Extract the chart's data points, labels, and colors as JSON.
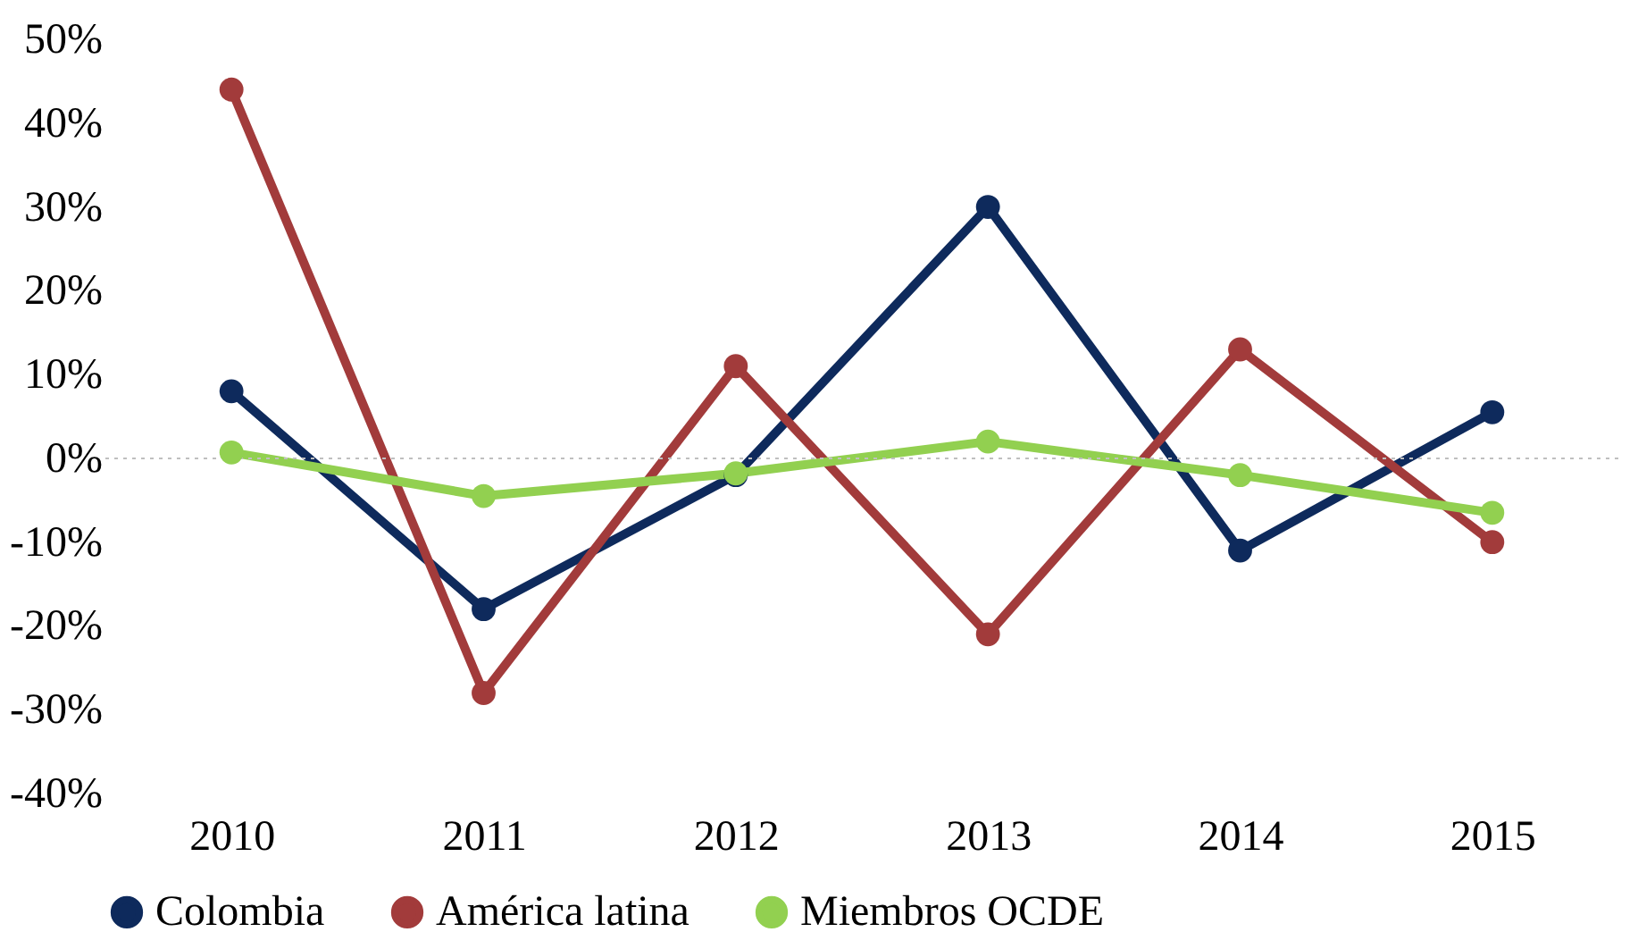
{
  "chart_data": {
    "type": "line",
    "categories": [
      "2010",
      "2011",
      "2012",
      "2013",
      "2014",
      "2015"
    ],
    "series": [
      {
        "name": "Colombia",
        "color": "#0e2a5c",
        "values": [
          8,
          -18,
          -2,
          30,
          -11,
          5.5
        ]
      },
      {
        "name": "América latina",
        "color": "#a23b3b",
        "values": [
          44,
          -28,
          11,
          -21,
          13,
          -10
        ]
      },
      {
        "name": "Miembros OCDE",
        "color": "#92d050",
        "values": [
          0.7,
          -4.5,
          -1.8,
          2,
          -2,
          -6.5
        ]
      }
    ],
    "ylim": [
      -40,
      50
    ],
    "yticks": [
      {
        "value": -40,
        "label": "-40%"
      },
      {
        "value": -30,
        "label": "-30%"
      },
      {
        "value": -20,
        "label": "-20%"
      },
      {
        "value": -10,
        "label": "-10%"
      },
      {
        "value": 0,
        "label": "0%"
      },
      {
        "value": 10,
        "label": "10%"
      },
      {
        "value": 20,
        "label": "20%"
      },
      {
        "value": 30,
        "label": "30%"
      },
      {
        "value": 40,
        "label": "40%"
      },
      {
        "value": 50,
        "label": "50%"
      }
    ],
    "ref_lines": [
      {
        "axis": "y",
        "value": 0,
        "color": "#bfbfbf",
        "line_style": "dotted"
      }
    ],
    "grid": false,
    "legend": "bottom",
    "marker": "circle",
    "line_style": "solid"
  }
}
